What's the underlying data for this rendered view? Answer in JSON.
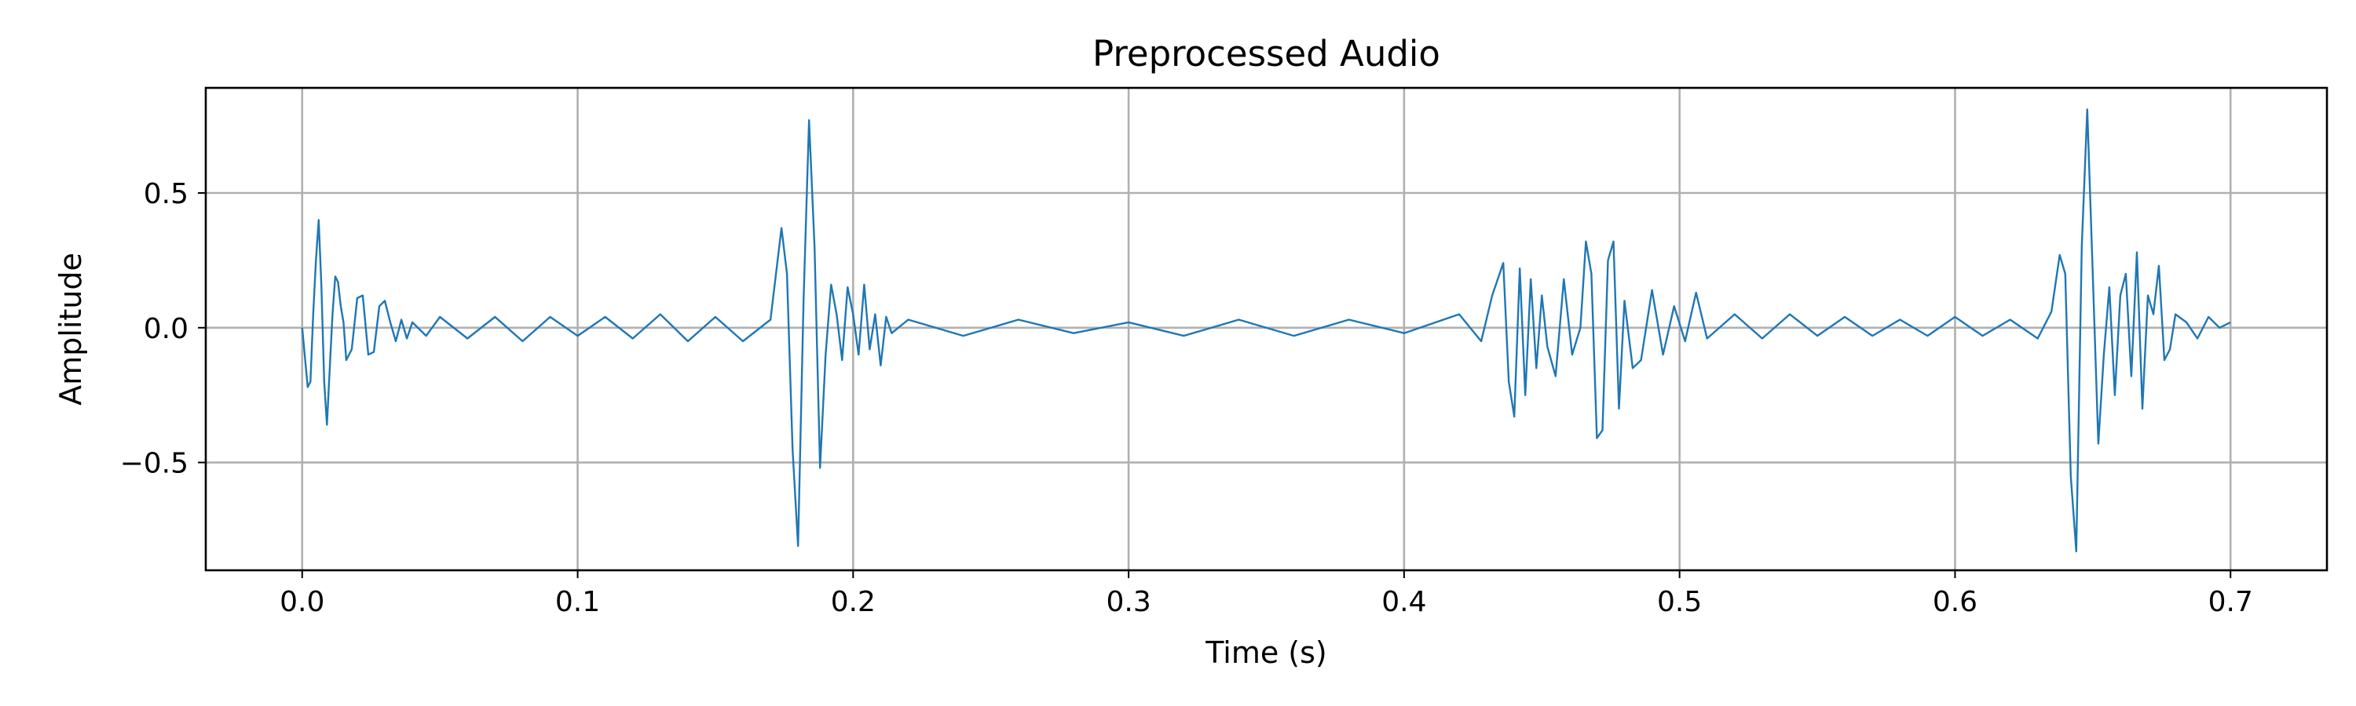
{
  "chart_data": {
    "type": "line",
    "title": "Preprocessed Audio",
    "xlabel": "Time (s)",
    "ylabel": "Amplitude",
    "xlim": [
      -0.035,
      0.735
    ],
    "ylim": [
      -0.9,
      0.89
    ],
    "grid": true,
    "legend": "none",
    "series_color": "#1f77b4",
    "x_ticks": [
      {
        "value": 0.0,
        "label": "0.0"
      },
      {
        "value": 0.1,
        "label": "0.1"
      },
      {
        "value": 0.2,
        "label": "0.2"
      },
      {
        "value": 0.3,
        "label": "0.3"
      },
      {
        "value": 0.4,
        "label": "0.4"
      },
      {
        "value": 0.5,
        "label": "0.5"
      },
      {
        "value": 0.6,
        "label": "0.6"
      },
      {
        "value": 0.7,
        "label": "0.7"
      }
    ],
    "y_ticks": [
      {
        "value": -0.5,
        "label": "−0.5"
      },
      {
        "value": 0.0,
        "label": "0.0"
      },
      {
        "value": 0.5,
        "label": "0.5"
      }
    ],
    "series": [
      {
        "x": [
          0.0,
          0.002,
          0.003,
          0.004,
          0.005,
          0.006,
          0.007,
          0.008,
          0.009,
          0.01,
          0.011,
          0.012,
          0.013,
          0.014,
          0.015,
          0.016,
          0.018,
          0.02,
          0.022,
          0.024,
          0.026,
          0.028,
          0.03,
          0.032,
          0.034,
          0.036,
          0.038,
          0.04,
          0.045,
          0.05,
          0.06,
          0.07,
          0.08,
          0.09,
          0.1,
          0.11,
          0.12,
          0.13,
          0.14,
          0.15,
          0.16,
          0.17,
          0.174,
          0.176,
          0.178,
          0.18,
          0.182,
          0.184,
          0.186,
          0.188,
          0.19,
          0.192,
          0.194,
          0.196,
          0.198,
          0.2,
          0.202,
          0.204,
          0.206,
          0.208,
          0.21,
          0.212,
          0.214,
          0.22,
          0.24,
          0.26,
          0.28,
          0.3,
          0.32,
          0.34,
          0.36,
          0.38,
          0.4,
          0.42,
          0.428,
          0.432,
          0.436,
          0.438,
          0.44,
          0.442,
          0.444,
          0.446,
          0.448,
          0.45,
          0.452,
          0.455,
          0.458,
          0.461,
          0.464,
          0.466,
          0.468,
          0.47,
          0.472,
          0.474,
          0.476,
          0.478,
          0.48,
          0.483,
          0.486,
          0.49,
          0.494,
          0.498,
          0.502,
          0.506,
          0.51,
          0.52,
          0.53,
          0.54,
          0.55,
          0.56,
          0.57,
          0.58,
          0.59,
          0.6,
          0.61,
          0.62,
          0.63,
          0.635,
          0.638,
          0.64,
          0.642,
          0.644,
          0.646,
          0.648,
          0.65,
          0.652,
          0.654,
          0.656,
          0.658,
          0.66,
          0.662,
          0.664,
          0.666,
          0.668,
          0.67,
          0.672,
          0.674,
          0.676,
          0.678,
          0.68,
          0.684,
          0.688,
          0.692,
          0.696,
          0.7
        ],
        "y": [
          0.0,
          -0.22,
          -0.2,
          0.05,
          0.25,
          0.4,
          0.15,
          -0.2,
          -0.36,
          -0.15,
          0.05,
          0.19,
          0.17,
          0.08,
          0.02,
          -0.12,
          -0.08,
          0.11,
          0.12,
          -0.1,
          -0.09,
          0.08,
          0.1,
          0.02,
          -0.05,
          0.03,
          -0.04,
          0.02,
          -0.03,
          0.04,
          -0.04,
          0.04,
          -0.05,
          0.04,
          -0.03,
          0.04,
          -0.04,
          0.05,
          -0.05,
          0.04,
          -0.05,
          0.03,
          0.37,
          0.2,
          -0.45,
          -0.81,
          0.1,
          0.77,
          0.3,
          -0.52,
          -0.1,
          0.16,
          0.05,
          -0.12,
          0.15,
          0.05,
          -0.1,
          0.16,
          -0.08,
          0.05,
          -0.14,
          0.04,
          -0.02,
          0.03,
          -0.03,
          0.03,
          -0.02,
          0.02,
          -0.03,
          0.03,
          -0.03,
          0.03,
          -0.02,
          0.05,
          -0.05,
          0.12,
          0.24,
          -0.2,
          -0.33,
          0.22,
          -0.25,
          0.18,
          -0.15,
          0.12,
          -0.07,
          -0.18,
          0.18,
          -0.1,
          0.0,
          0.32,
          0.2,
          -0.41,
          -0.38,
          0.25,
          0.32,
          -0.3,
          0.1,
          -0.15,
          -0.12,
          0.14,
          -0.1,
          0.08,
          -0.05,
          0.13,
          -0.04,
          0.05,
          -0.04,
          0.05,
          -0.03,
          0.04,
          -0.03,
          0.03,
          -0.03,
          0.04,
          -0.03,
          0.03,
          -0.04,
          0.06,
          0.27,
          0.2,
          -0.55,
          -0.83,
          0.3,
          0.81,
          0.2,
          -0.43,
          -0.1,
          0.15,
          -0.25,
          0.12,
          0.2,
          -0.18,
          0.28,
          -0.3,
          0.12,
          0.05,
          0.23,
          -0.12,
          -0.08,
          0.05,
          0.02,
          -0.04,
          0.04,
          0.0,
          0.02
        ]
      }
    ]
  }
}
